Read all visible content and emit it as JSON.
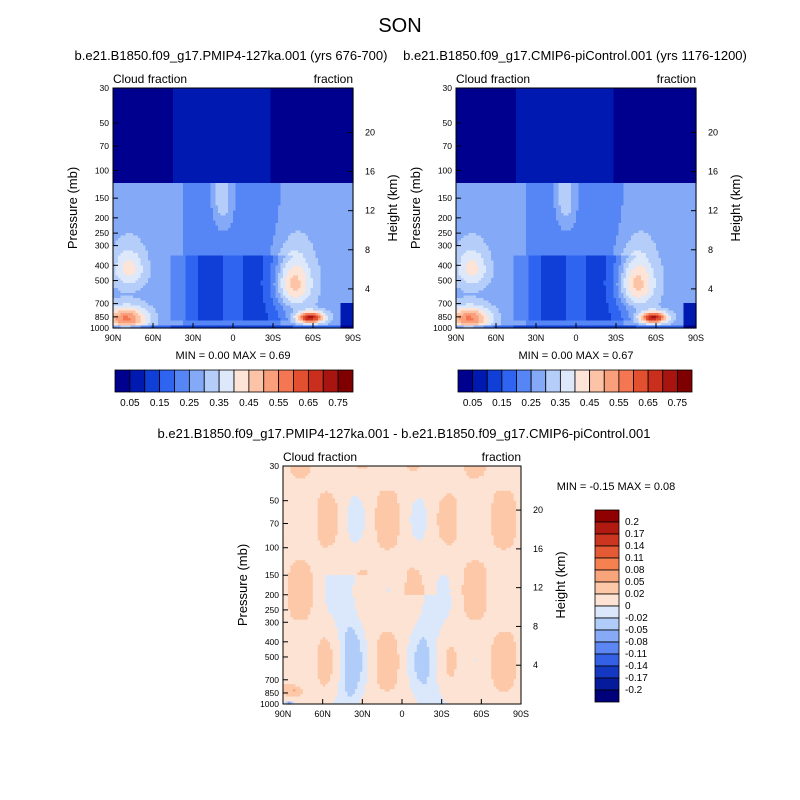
{
  "page": {
    "title": "SON"
  },
  "chart_data": [
    {
      "type": "heatmap",
      "title": "b.e21.B1850.f09_g17.PMIP4-127ka.001 (yrs 676-700)",
      "left_label": "Cloud fraction",
      "right_label": "fraction",
      "xlabel": "",
      "ylabel": "Pressure (mb)",
      "ylabel_right": "Height (km)",
      "x_ticks": [
        "90N",
        "60N",
        "30N",
        "0",
        "30S",
        "60S",
        "90S"
      ],
      "y_ticks": [
        "30",
        "50",
        "70",
        "100",
        "150",
        "200",
        "250",
        "300",
        "400",
        "500",
        "700",
        "850",
        "1000"
      ],
      "y_ticks_right": [
        "20",
        "16",
        "12",
        "8",
        "4"
      ],
      "stats": "MIN =   0.00  MAX =   0.69",
      "colorbar_orientation": "horizontal",
      "colorbar_labels": [
        "0.05",
        "0.15",
        "0.25",
        "0.35",
        "0.45",
        "0.55",
        "0.65",
        "0.75"
      ],
      "colorbar_colors": [
        "#00008f",
        "#0019b0",
        "#0f3fd6",
        "#2f64f0",
        "#5686f5",
        "#84a9f7",
        "#b4cdf9",
        "#dde9fb",
        "#fde4d6",
        "#fcc3a6",
        "#f99f7b",
        "#f47652",
        "#e3502f",
        "#c92f1c",
        "#a81410",
        "#7f0000"
      ]
    },
    {
      "type": "heatmap",
      "title": "b.e21.B1850.f09_g17.CMIP6-piControl.001 (yrs 1176-1200)",
      "left_label": "Cloud fraction",
      "right_label": "fraction",
      "xlabel": "",
      "ylabel": "Pressure (mb)",
      "ylabel_right": "Height (km)",
      "x_ticks": [
        "90N",
        "60N",
        "30N",
        "0",
        "30S",
        "60S",
        "90S"
      ],
      "y_ticks": [
        "30",
        "50",
        "70",
        "100",
        "150",
        "200",
        "250",
        "300",
        "400",
        "500",
        "700",
        "850",
        "1000"
      ],
      "y_ticks_right": [
        "20",
        "16",
        "12",
        "8",
        "4"
      ],
      "stats": "MIN =   0.00  MAX =   0.67",
      "colorbar_orientation": "horizontal",
      "colorbar_labels": [
        "0.05",
        "0.15",
        "0.25",
        "0.35",
        "0.45",
        "0.55",
        "0.65",
        "0.75"
      ],
      "colorbar_colors": [
        "#00008f",
        "#0019b0",
        "#0f3fd6",
        "#2f64f0",
        "#5686f5",
        "#84a9f7",
        "#b4cdf9",
        "#dde9fb",
        "#fde4d6",
        "#fcc3a6",
        "#f99f7b",
        "#f47652",
        "#e3502f",
        "#c92f1c",
        "#a81410",
        "#7f0000"
      ]
    },
    {
      "type": "heatmap",
      "title": "b.e21.B1850.f09_g17.PMIP4-127ka.001 - b.e21.B1850.f09_g17.CMIP6-piControl.001",
      "left_label": "Cloud fraction",
      "right_label": "fraction",
      "xlabel": "",
      "ylabel": "Pressure (mb)",
      "ylabel_right": "Height (km)",
      "x_ticks": [
        "90N",
        "60N",
        "30N",
        "0",
        "30S",
        "60S",
        "90S"
      ],
      "y_ticks": [
        "30",
        "50",
        "70",
        "100",
        "150",
        "200",
        "250",
        "300",
        "400",
        "500",
        "700",
        "850",
        "1000"
      ],
      "y_ticks_right": [
        "20",
        "16",
        "12",
        "8",
        "4"
      ],
      "stats": "MIN =  -0.15  MAX =   0.08",
      "colorbar_orientation": "vertical",
      "colorbar_labels": [
        "0.2",
        "0.17",
        "0.14",
        "0.11",
        "0.08",
        "0.05",
        "0.02",
        "0",
        "-0.02",
        "-0.05",
        "-0.08",
        "-0.11",
        "-0.14",
        "-0.17",
        "-0.2"
      ],
      "colorbar_colors": [
        "#8f0000",
        "#b01a10",
        "#cc3520",
        "#e45a35",
        "#f4814f",
        "#f9a57c",
        "#fcc8a8",
        "#fde3d4",
        "#dbe8fb",
        "#b0ccf8",
        "#86aaf5",
        "#5c86f1",
        "#3360e5",
        "#1538c3",
        "#061a9c",
        "#00007a"
      ]
    }
  ]
}
